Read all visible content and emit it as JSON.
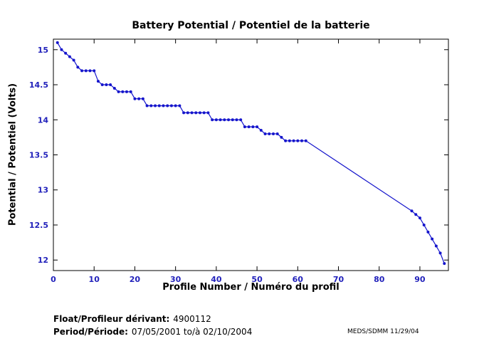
{
  "chart_data": {
    "type": "line",
    "title": "Battery Potential / Potentiel de la batterie",
    "xlabel": "Profile Number / Numéro du profil",
    "ylabel": "Potential / Potentiel (Volts)",
    "xlim": [
      0,
      97
    ],
    "ylim": [
      11.85,
      15.15
    ],
    "xticks": [
      0,
      10,
      20,
      30,
      40,
      50,
      60,
      70,
      80,
      90
    ],
    "yticks": [
      12,
      12.5,
      13,
      13.5,
      14,
      14.5,
      15
    ],
    "grid": false,
    "legend": "none",
    "line_color": "#1515CC",
    "tick_label_color": "#2222BB",
    "axis_color": "#000000",
    "marker": "dot",
    "series": [
      {
        "name": "battery_potential",
        "x": [
          1,
          2,
          3,
          4,
          5,
          6,
          7,
          8,
          9,
          10,
          11,
          12,
          13,
          14,
          15,
          16,
          17,
          18,
          19,
          20,
          21,
          22,
          23,
          24,
          25,
          26,
          27,
          28,
          29,
          30,
          31,
          32,
          33,
          34,
          35,
          36,
          37,
          38,
          39,
          40,
          41,
          42,
          43,
          44,
          45,
          46,
          47,
          48,
          49,
          50,
          51,
          52,
          53,
          54,
          55,
          56,
          57,
          58,
          59,
          60,
          61,
          62,
          88,
          89,
          90,
          91,
          92,
          93,
          94,
          95,
          96
        ],
        "y": [
          15.1,
          15.0,
          14.95,
          14.9,
          14.85,
          14.75,
          14.7,
          14.7,
          14.7,
          14.7,
          14.55,
          14.5,
          14.5,
          14.5,
          14.45,
          14.4,
          14.4,
          14.4,
          14.4,
          14.3,
          14.3,
          14.3,
          14.2,
          14.2,
          14.2,
          14.2,
          14.2,
          14.2,
          14.2,
          14.2,
          14.2,
          14.1,
          14.1,
          14.1,
          14.1,
          14.1,
          14.1,
          14.1,
          14.0,
          14.0,
          14.0,
          14.0,
          14.0,
          14.0,
          14.0,
          14.0,
          13.9,
          13.9,
          13.9,
          13.9,
          13.85,
          13.8,
          13.8,
          13.8,
          13.8,
          13.75,
          13.7,
          13.7,
          13.7,
          13.7,
          13.7,
          13.7,
          12.7,
          12.65,
          12.6,
          12.5,
          12.4,
          12.3,
          12.2,
          12.1,
          11.95
        ]
      }
    ]
  },
  "footer": {
    "float_label": "Float/Profileur dérivant:",
    "float_value": "4900112",
    "period_label": "Period/Période:",
    "period_value": "07/05/2001  to/à  02/10/2004",
    "credit": "MEDS/SDMM  11/29/04"
  }
}
